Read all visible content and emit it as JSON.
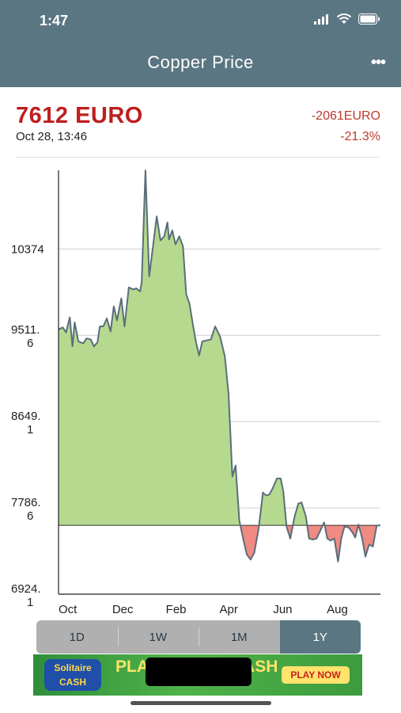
{
  "status_bar": {
    "time": "1:47",
    "icons": [
      "signal-icon",
      "wifi-icon",
      "battery-icon"
    ]
  },
  "header": {
    "title": "Copper Price",
    "more_label": "•••"
  },
  "summary": {
    "price": "7612 EURO",
    "timestamp": "Oct 28, 13:46",
    "change_abs": "-2061EURO",
    "change_pct": "-21.3%"
  },
  "colors": {
    "header": "#5b7683",
    "price": "#bf1e1e",
    "area_up": "#b5d98e",
    "area_down": "#f08a82",
    "line": "#5a6e7a"
  },
  "chart_data": {
    "type": "area",
    "y_tick_labels": [
      [
        "10374"
      ],
      [
        "9511.",
        "6"
      ],
      [
        "8649.",
        "1"
      ],
      [
        "7786.",
        "6"
      ],
      [
        "6924.",
        "1"
      ]
    ],
    "y_ticks": [
      10374,
      9511.6,
      8649.1,
      7786.6,
      6924.1
    ],
    "x_tick_labels": [
      "Oct",
      "Dec",
      "Feb",
      "Apr",
      "Jun",
      "Aug"
    ],
    "x_ticks": [
      0,
      2,
      4,
      6,
      8,
      10
    ],
    "ylim": [
      6924.1,
      11160
    ],
    "xlim": [
      0,
      12
    ],
    "baseline": 7612,
    "grid": true,
    "x": [
      0,
      0.16,
      0.28,
      0.42,
      0.52,
      0.6,
      0.74,
      0.92,
      1.04,
      1.2,
      1.32,
      1.45,
      1.54,
      1.67,
      1.8,
      1.94,
      2.06,
      2.18,
      2.34,
      2.46,
      2.62,
      2.78,
      2.9,
      3.04,
      3.1,
      3.24,
      3.38,
      3.54,
      3.66,
      3.8,
      3.94,
      4.06,
      4.12,
      4.24,
      4.36,
      4.5,
      4.64,
      4.76,
      4.88,
      5.02,
      5.12,
      5.24,
      5.36,
      5.52,
      5.68,
      5.84,
      6.02,
      6.2,
      6.34,
      6.48,
      6.6,
      6.74,
      6.88,
      7.02,
      7.16,
      7.3,
      7.46,
      7.62,
      7.74,
      7.86,
      7.98,
      8.14,
      8.28,
      8.38,
      8.5,
      8.64,
      8.8,
      8.94,
      9.06,
      9.22,
      9.34,
      9.48,
      9.62,
      9.76,
      9.9,
      10.02,
      10.14,
      10.28,
      10.42,
      10.54,
      10.66,
      10.82,
      10.96,
      11.06,
      11.18,
      11.32,
      11.44,
      11.58,
      11.72,
      11.86,
      12.0
    ],
    "y": [
      9570,
      9590,
      9540,
      9690,
      9400,
      9640,
      9450,
      9430,
      9480,
      9470,
      9400,
      9440,
      9600,
      9600,
      9680,
      9550,
      9800,
      9660,
      9880,
      9600,
      9990,
      9970,
      9980,
      9950,
      10040,
      11160,
      10100,
      10440,
      10700,
      10460,
      10500,
      10640,
      10470,
      10560,
      10420,
      10500,
      10400,
      9920,
      9830,
      9600,
      9450,
      9310,
      9450,
      9460,
      9470,
      9600,
      9500,
      9300,
      8920,
      8100,
      8210,
      7660,
      7480,
      7320,
      7270,
      7340,
      7580,
      7940,
      7910,
      7920,
      7980,
      8080,
      8080,
      7950,
      7600,
      7480,
      7700,
      7830,
      7840,
      7700,
      7480,
      7470,
      7480,
      7560,
      7640,
      7480,
      7460,
      7480,
      7250,
      7480,
      7600,
      7590,
      7540,
      7490,
      7620,
      7480,
      7300,
      7420,
      7400,
      7610,
      7612
    ]
  },
  "range_tabs": [
    {
      "label": "1D",
      "active": false
    },
    {
      "label": "1W",
      "active": false
    },
    {
      "label": "1M",
      "active": false
    },
    {
      "label": "1Y",
      "active": true
    }
  ],
  "ad": {
    "logo_text": "Solitaire CASH",
    "headline": "PLAY & EARN CASH",
    "cta": "PLAY NOW"
  }
}
